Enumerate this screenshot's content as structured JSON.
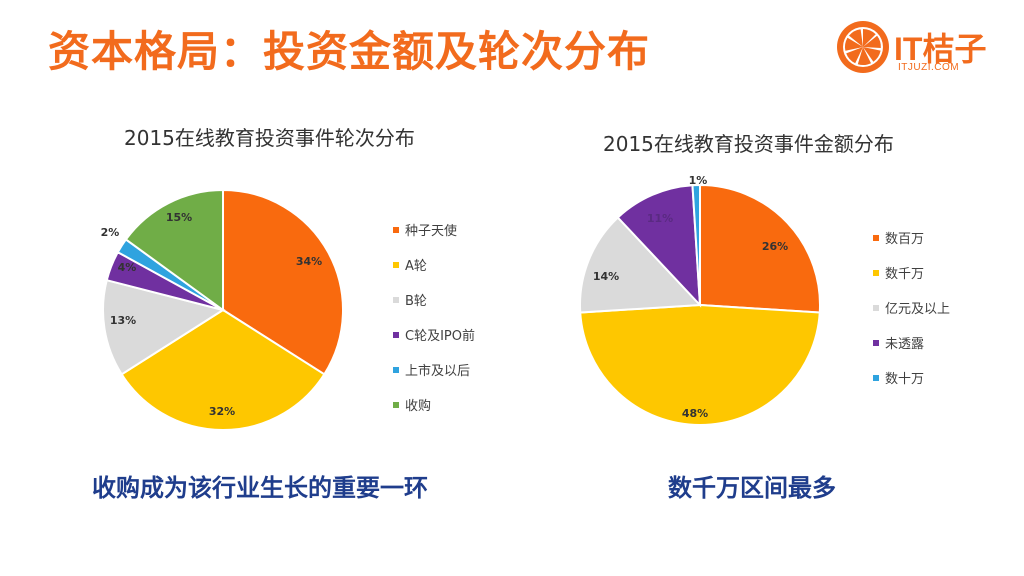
{
  "title": "资本格局：投资金额及轮次分布",
  "logo": {
    "text": "IT桔子",
    "sub": "ITJUZI.COM",
    "color": "#F26B1D"
  },
  "chart_data": [
    {
      "type": "pie",
      "title": "2015在线教育投资事件轮次分布",
      "categories": [
        "种子天使",
        "A轮",
        "B轮",
        "C轮及IPO前",
        "上市及以后",
        "收购"
      ],
      "values": [
        34,
        32,
        13,
        4,
        2,
        15
      ],
      "labels": [
        "34%",
        "32%",
        "13%",
        "4%",
        "2%",
        "15%"
      ],
      "colors": [
        "#F96A0E",
        "#FEC700",
        "#DADADA",
        "#7030A0",
        "#2FA3DF",
        "#70AD47"
      ],
      "legend": "right"
    },
    {
      "type": "pie",
      "title": "2015在线教育投资事件金额分布",
      "categories": [
        "数百万",
        "数千万",
        "亿元及以上",
        "未透露",
        "数十万"
      ],
      "values": [
        26,
        48,
        14,
        11,
        1
      ],
      "labels": [
        "26%",
        "48%",
        "14%",
        "11%",
        "1%"
      ],
      "colors": [
        "#F96A0E",
        "#FEC700",
        "#DADADA",
        "#7030A0",
        "#2FA3DF"
      ],
      "legend": "right"
    }
  ],
  "captions": [
    "收购成为该行业生长的重要一环",
    "数千万区间最多"
  ]
}
